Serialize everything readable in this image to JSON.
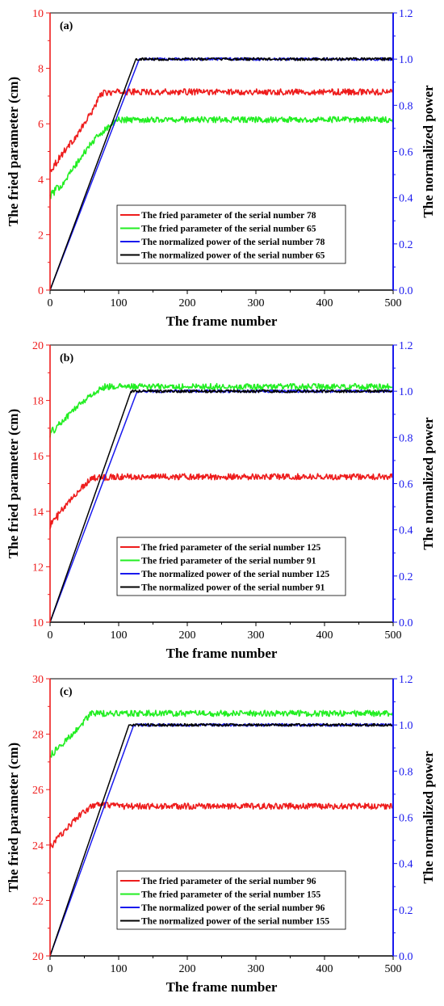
{
  "chart_data": [
    {
      "type": "line",
      "panel_label": "(a)",
      "xlabel": "The frame number",
      "ylabel_left": "The fried parameter (cm)",
      "ylabel_right": "The normalized power",
      "xlim": [
        0,
        500
      ],
      "ylim_left": [
        0,
        10
      ],
      "ylim_right": [
        0,
        1.2
      ],
      "x_ticks": [
        "0",
        "100",
        "200",
        "300",
        "400",
        "500"
      ],
      "y_ticks_left": [
        "0",
        "2",
        "4",
        "6",
        "8",
        "10"
      ],
      "y_ticks_right": [
        "0.0",
        "0.2",
        "0.4",
        "0.6",
        "0.8",
        "1.0",
        "1.2"
      ],
      "legend_position": "bottom-center",
      "series": [
        {
          "name": "The fried parameter of the serial number 78",
          "axis": "left",
          "color": "#ee1c1c",
          "x": [
            0,
            20,
            40,
            60,
            75,
            100,
            200,
            300,
            400,
            500
          ],
          "values": [
            4.3,
            5.0,
            5.6,
            6.4,
            7.1,
            7.15,
            7.15,
            7.15,
            7.15,
            7.15
          ]
        },
        {
          "name": "The fried parameter of the serial number 65",
          "axis": "left",
          "color": "#22ee22",
          "x": [
            0,
            20,
            40,
            60,
            80,
            100,
            200,
            300,
            400,
            500
          ],
          "values": [
            3.4,
            3.9,
            4.6,
            5.3,
            5.8,
            6.15,
            6.15,
            6.15,
            6.15,
            6.15
          ]
        },
        {
          "name": "The normalized power of the serial number 78",
          "axis": "right",
          "color": "#1a1aee",
          "x": [
            0,
            130,
            500
          ],
          "values": [
            0.0,
            1.0,
            1.0
          ]
        },
        {
          "name": "The normalized power of the serial number 65",
          "axis": "right",
          "color": "#000000",
          "x": [
            0,
            125,
            500
          ],
          "values": [
            0.0,
            1.0,
            1.0
          ]
        }
      ]
    },
    {
      "type": "line",
      "panel_label": "(b)",
      "xlabel": "The frame number",
      "ylabel_left": "The fried parameter (cm)",
      "ylabel_right": "The normalized power",
      "xlim": [
        0,
        500
      ],
      "ylim_left": [
        10,
        20
      ],
      "ylim_right": [
        0,
        1.2
      ],
      "x_ticks": [
        "0",
        "100",
        "200",
        "300",
        "400",
        "500"
      ],
      "y_ticks_left": [
        "10",
        "12",
        "14",
        "16",
        "18",
        "20"
      ],
      "y_ticks_right": [
        "0.0",
        "0.2",
        "0.4",
        "0.6",
        "0.8",
        "1.0",
        "1.2"
      ],
      "legend_position": "bottom-center",
      "series": [
        {
          "name": "The fried parameter of the serial number 125",
          "axis": "left",
          "color": "#ee1c1c",
          "x": [
            0,
            20,
            40,
            60,
            100,
            200,
            300,
            400,
            500
          ],
          "values": [
            13.5,
            14.1,
            14.7,
            15.2,
            15.25,
            15.25,
            15.25,
            15.25,
            15.25
          ]
        },
        {
          "name": "The fried parameter of the serial number 91",
          "axis": "left",
          "color": "#22ee22",
          "x": [
            0,
            20,
            40,
            60,
            80,
            100,
            200,
            300,
            400,
            500
          ],
          "values": [
            16.8,
            17.3,
            17.8,
            18.2,
            18.5,
            18.5,
            18.5,
            18.5,
            18.5,
            18.5
          ]
        },
        {
          "name": "The normalized power of the serial number 125",
          "axis": "right",
          "color": "#1a1aee",
          "x": [
            0,
            127,
            500
          ],
          "values": [
            0.0,
            1.0,
            1.0
          ]
        },
        {
          "name": "The normalized power of the serial number 91",
          "axis": "right",
          "color": "#000000",
          "x": [
            0,
            118,
            500
          ],
          "values": [
            0.0,
            1.0,
            1.0
          ]
        }
      ]
    },
    {
      "type": "line",
      "panel_label": "(c)",
      "xlabel": "The frame number",
      "ylabel_left": "The fried parameter (cm)",
      "ylabel_right": "The normalized power",
      "xlim": [
        0,
        500
      ],
      "ylim_left": [
        20,
        30
      ],
      "ylim_right": [
        0,
        1.2
      ],
      "x_ticks": [
        "0",
        "100",
        "200",
        "300",
        "400",
        "500"
      ],
      "y_ticks_left": [
        "20",
        "22",
        "24",
        "26",
        "28",
        "30"
      ],
      "y_ticks_right": [
        "0.0",
        "0.2",
        "0.4",
        "0.6",
        "0.8",
        "1.0",
        "1.2"
      ],
      "legend_position": "bottom-center",
      "series": [
        {
          "name": "The fried parameter of the serial number 96",
          "axis": "left",
          "color": "#ee1c1c",
          "x": [
            0,
            20,
            40,
            60,
            70,
            100,
            200,
            300,
            400,
            500
          ],
          "values": [
            23.9,
            24.5,
            25.0,
            25.4,
            25.45,
            25.4,
            25.4,
            25.4,
            25.4,
            25.4
          ]
        },
        {
          "name": "The fried parameter of the serial number 155",
          "axis": "left",
          "color": "#22ee22",
          "x": [
            0,
            20,
            40,
            60,
            100,
            200,
            300,
            400,
            500
          ],
          "values": [
            27.2,
            27.7,
            28.2,
            28.75,
            28.75,
            28.75,
            28.75,
            28.75,
            28.75
          ]
        },
        {
          "name": "The normalized power of the serial number 96",
          "axis": "right",
          "color": "#1a1aee",
          "x": [
            0,
            122,
            500
          ],
          "values": [
            0.0,
            1.0,
            1.0
          ]
        },
        {
          "name": "The normalized power of the serial number 155",
          "axis": "right",
          "color": "#000000",
          "x": [
            0,
            115,
            500
          ],
          "values": [
            0.0,
            1.0,
            1.0
          ]
        }
      ]
    }
  ]
}
